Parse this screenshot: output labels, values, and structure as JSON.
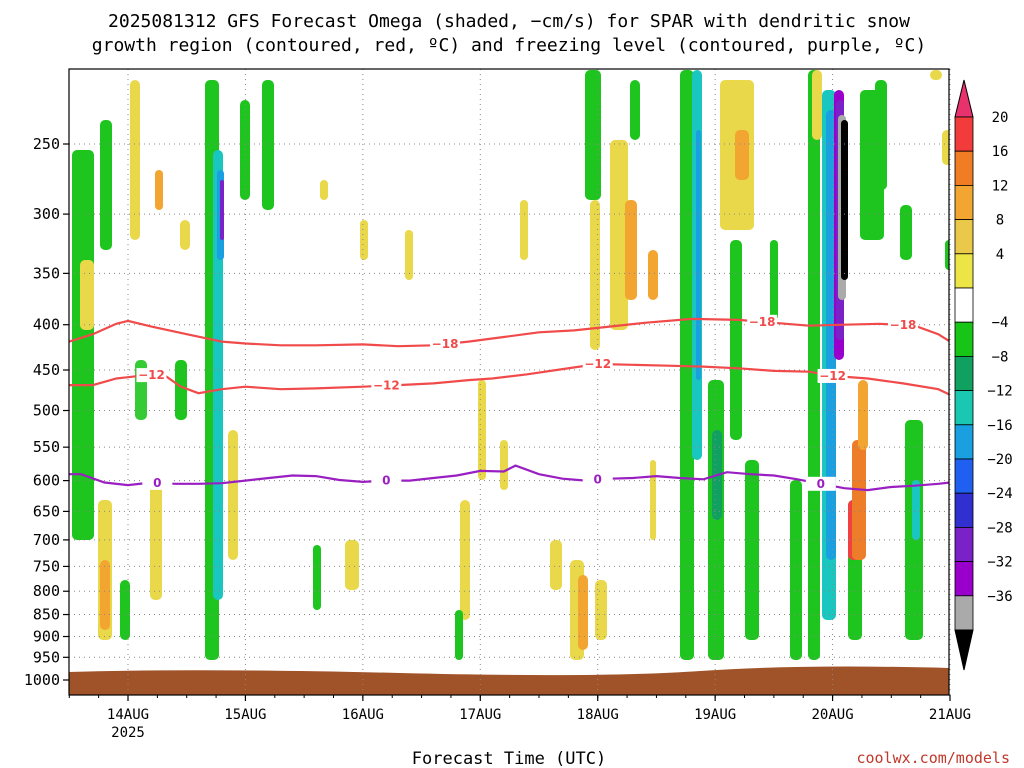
{
  "title": {
    "line1": "2025081312 GFS Forecast Omega (shaded, −cm/s) for SPAR with dendritic snow",
    "line2": "growth region (contoured, red, ºC) and freezing level (contoured, purple, ºC)"
  },
  "credit": "coolwx.com/models",
  "chart_data": {
    "type": "heatmap",
    "xlabel": "Forecast Time (UTC)",
    "ylabel": "",
    "x_ticks": [
      "14AUG",
      "15AUG",
      "16AUG",
      "17AUG",
      "18AUG",
      "19AUG",
      "20AUG",
      "21AUG"
    ],
    "x_sublabel": "2025",
    "y_ticks": [
      250,
      300,
      350,
      400,
      450,
      500,
      550,
      600,
      650,
      700,
      750,
      800,
      850,
      900,
      950,
      1000
    ],
    "y_scale": "log",
    "ylim": [
      1000,
      200
    ],
    "x_range_days": [
      13.55,
      21.0
    ],
    "grid": true,
    "colorbar": {
      "labels": [
        "20",
        "16",
        "12",
        "8",
        "4",
        "−4",
        "−8",
        "−12",
        "−16",
        "−20",
        "−24",
        "−28",
        "−32",
        "−36"
      ],
      "colors": [
        "#e8326e",
        "#f23c3c",
        "#f07d23",
        "#f2a530",
        "#e9c84a",
        "#ede445",
        "#ffffff",
        "#16c516",
        "#10a060",
        "#1ac7b0",
        "#1aa0e0",
        "#2060f0",
        "#3030d0",
        "#7a22c8",
        "#9900cc",
        "#aaaaaa",
        "#000000"
      ]
    },
    "contours": {
      "dgz_top": {
        "label": "−18",
        "color": "#f04a4a",
        "days": [
          13.5,
          13.7,
          13.9,
          14.0,
          14.2,
          14.5,
          14.8,
          15.0,
          15.3,
          15.6,
          16.0,
          16.3,
          16.6,
          16.9,
          17.2,
          17.5,
          17.8,
          18.1,
          18.4,
          18.8,
          19.2,
          19.5,
          19.8,
          20.1,
          20.4,
          20.7,
          20.9,
          21.0
        ],
        "hpa": [
          418,
          410,
          399,
          396,
          402,
          410,
          418,
          420,
          422,
          422,
          421,
          423,
          422,
          418,
          413,
          408,
          406,
          402,
          398,
          394,
          395,
          398,
          401,
          400,
          399,
          401,
          410,
          418
        ]
      },
      "dgz_bottom": {
        "label": "−12",
        "color": "#f04a4a",
        "days": [
          13.5,
          13.7,
          13.9,
          14.1,
          14.3,
          14.45,
          14.6,
          14.8,
          15.0,
          15.3,
          15.6,
          16.0,
          16.3,
          16.6,
          16.9,
          17.1,
          17.4,
          17.7,
          18.0,
          18.3,
          18.6,
          18.9,
          19.2,
          19.5,
          19.8,
          20.0,
          20.3,
          20.6,
          20.9,
          21.0
        ],
        "hpa": [
          468,
          468,
          460,
          457,
          455,
          470,
          478,
          473,
          470,
          473,
          472,
          470,
          468,
          466,
          462,
          460,
          455,
          449,
          443,
          444,
          445,
          446,
          448,
          451,
          452,
          457,
          460,
          466,
          473,
          480
        ]
      },
      "freezing": {
        "label": "0",
        "color": "#9a1fc2",
        "days": [
          13.5,
          13.6,
          13.8,
          14.0,
          14.2,
          14.4,
          14.6,
          14.8,
          15.0,
          15.2,
          15.4,
          15.6,
          15.8,
          16.0,
          16.2,
          16.4,
          16.6,
          16.8,
          17.0,
          17.2,
          17.3,
          17.5,
          17.7,
          17.9,
          18.1,
          18.3,
          18.5,
          18.7,
          18.9,
          19.1,
          19.3,
          19.5,
          19.7,
          19.9,
          20.1,
          20.3,
          20.5,
          20.7,
          20.9,
          21.0
        ],
        "hpa": [
          590,
          590,
          603,
          607,
          603,
          605,
          605,
          604,
          600,
          596,
          592,
          593,
          599,
          602,
          600,
          600,
          596,
          592,
          585,
          586,
          577,
          590,
          597,
          600,
          597,
          596,
          593,
          596,
          598,
          587,
          590,
          592,
          598,
          605,
          612,
          615,
          610,
          608,
          605,
          603
        ]
      }
    }
  }
}
